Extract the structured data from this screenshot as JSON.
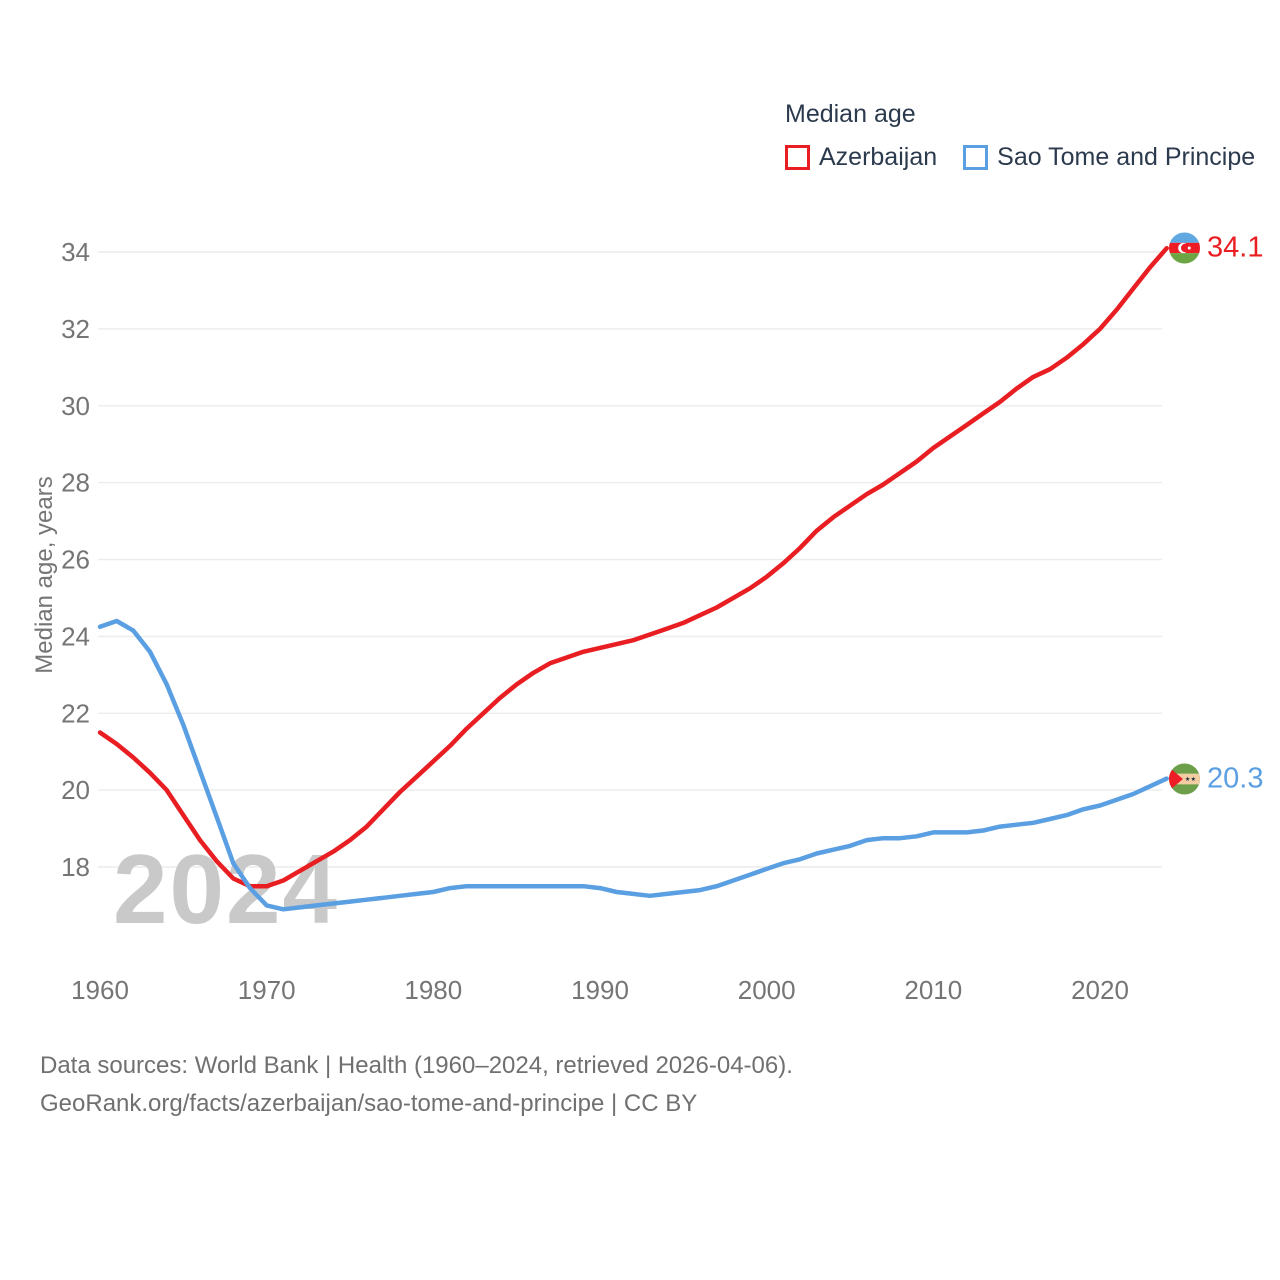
{
  "legend": {
    "title": "Median age",
    "items": [
      {
        "label": "Azerbaijan"
      },
      {
        "label": "Sao Tome and Principe"
      }
    ]
  },
  "y_axis": {
    "title": "Median age, years"
  },
  "watermark": {
    "text": "2024"
  },
  "endpoints": [
    {
      "value": "34.1"
    },
    {
      "value": "20.3"
    }
  ],
  "source": {
    "line1": "Data sources: World Bank | Health (1960–2024, retrieved 2026-04-06).",
    "line2": "GeoRank.org/facts/azerbaijan/sao-tome-and-principe | CC BY"
  },
  "chart_data": {
    "type": "line",
    "title": "Median age",
    "xlabel": "",
    "ylabel": "Median age, years",
    "x_start": 1960,
    "x_end": 2024,
    "x_step": 1,
    "xlim": [
      1960,
      2024
    ],
    "ylim": [
      16.5,
      35
    ],
    "grid": "horizontal",
    "legend_position": "top-right",
    "y_ticks": [
      18,
      20,
      22,
      24,
      26,
      28,
      30,
      32,
      34
    ],
    "x_ticks": [
      1960,
      1970,
      1980,
      1990,
      2000,
      2010,
      2020
    ],
    "series": [
      {
        "name": "Azerbaijan",
        "color": "#e91e22",
        "end_label": "34.1",
        "last_value": 34.1,
        "values": [
          21.5,
          21.2,
          20.85,
          20.45,
          20.0,
          19.35,
          18.7,
          18.15,
          17.7,
          17.5,
          17.5,
          17.65,
          17.9,
          18.15,
          18.4,
          18.7,
          19.05,
          19.5,
          19.95,
          20.35,
          20.75,
          21.15,
          21.6,
          22.0,
          22.4,
          22.75,
          23.05,
          23.3,
          23.45,
          23.6,
          23.7,
          23.8,
          23.9,
          24.05,
          24.2,
          24.35,
          24.55,
          24.75,
          25.0,
          25.25,
          25.55,
          25.9,
          26.3,
          26.75,
          27.1,
          27.4,
          27.7,
          27.95,
          28.25,
          28.55,
          28.9,
          29.2,
          29.5,
          29.8,
          30.1,
          30.45,
          30.75,
          30.95,
          31.25,
          31.6,
          32.0,
          32.5,
          33.05,
          33.6,
          34.1
        ]
      },
      {
        "name": "Sao Tome and Principe",
        "color": "#5b9fe3",
        "end_label": "20.3",
        "last_value": 20.3,
        "values": [
          24.25,
          24.4,
          24.15,
          23.6,
          22.75,
          21.7,
          20.5,
          19.3,
          18.1,
          17.45,
          17.0,
          16.9,
          16.95,
          17.0,
          17.05,
          17.1,
          17.15,
          17.2,
          17.25,
          17.3,
          17.35,
          17.45,
          17.5,
          17.5,
          17.5,
          17.5,
          17.5,
          17.5,
          17.5,
          17.5,
          17.45,
          17.35,
          17.3,
          17.25,
          17.3,
          17.35,
          17.4,
          17.5,
          17.65,
          17.8,
          17.95,
          18.1,
          18.2,
          18.35,
          18.45,
          18.55,
          18.7,
          18.75,
          18.75,
          18.8,
          18.9,
          18.9,
          18.9,
          18.95,
          19.05,
          19.1,
          19.15,
          19.25,
          19.35,
          19.5,
          19.6,
          19.75,
          19.9,
          20.1,
          20.3
        ]
      }
    ]
  }
}
